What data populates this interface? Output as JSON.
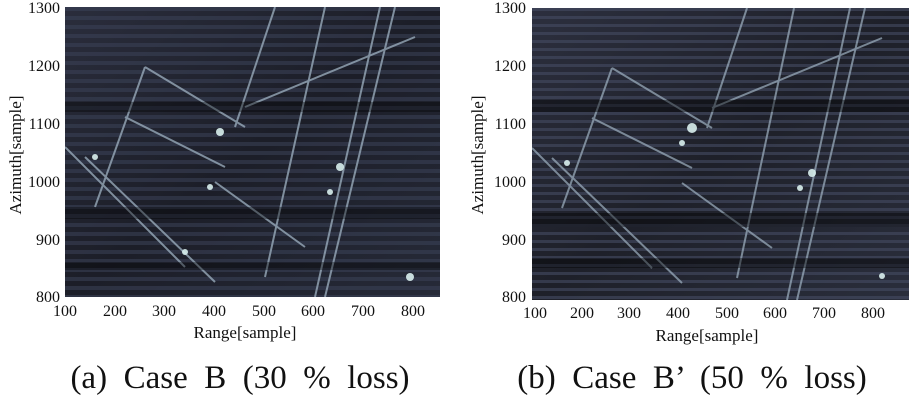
{
  "panels": [
    {
      "id": "a",
      "caption": "(a)  Case  B  (30  %  loss)",
      "xlabel": "Range[sample]",
      "ylabel": "Azimuth[sample]",
      "xticks": [
        "100",
        "200",
        "300",
        "400",
        "500",
        "600",
        "700",
        "800"
      ],
      "yticks": [
        "1300",
        "1200",
        "1100",
        "1000",
        "900",
        "800"
      ]
    },
    {
      "id": "b",
      "caption": "(b)  Case  B’  (50  %  loss)",
      "xlabel": "Range[sample]",
      "ylabel": "Azimuth[sample]",
      "xticks": [
        "100",
        "200",
        "300",
        "400",
        "500",
        "600",
        "700",
        "800"
      ],
      "yticks": [
        "1300",
        "1200",
        "1100",
        "1000",
        "900",
        "800"
      ]
    }
  ],
  "colors": {
    "image_dark": "#16181f",
    "image_mid": "#4a5068",
    "image_bright": "#cfe6e6"
  }
}
